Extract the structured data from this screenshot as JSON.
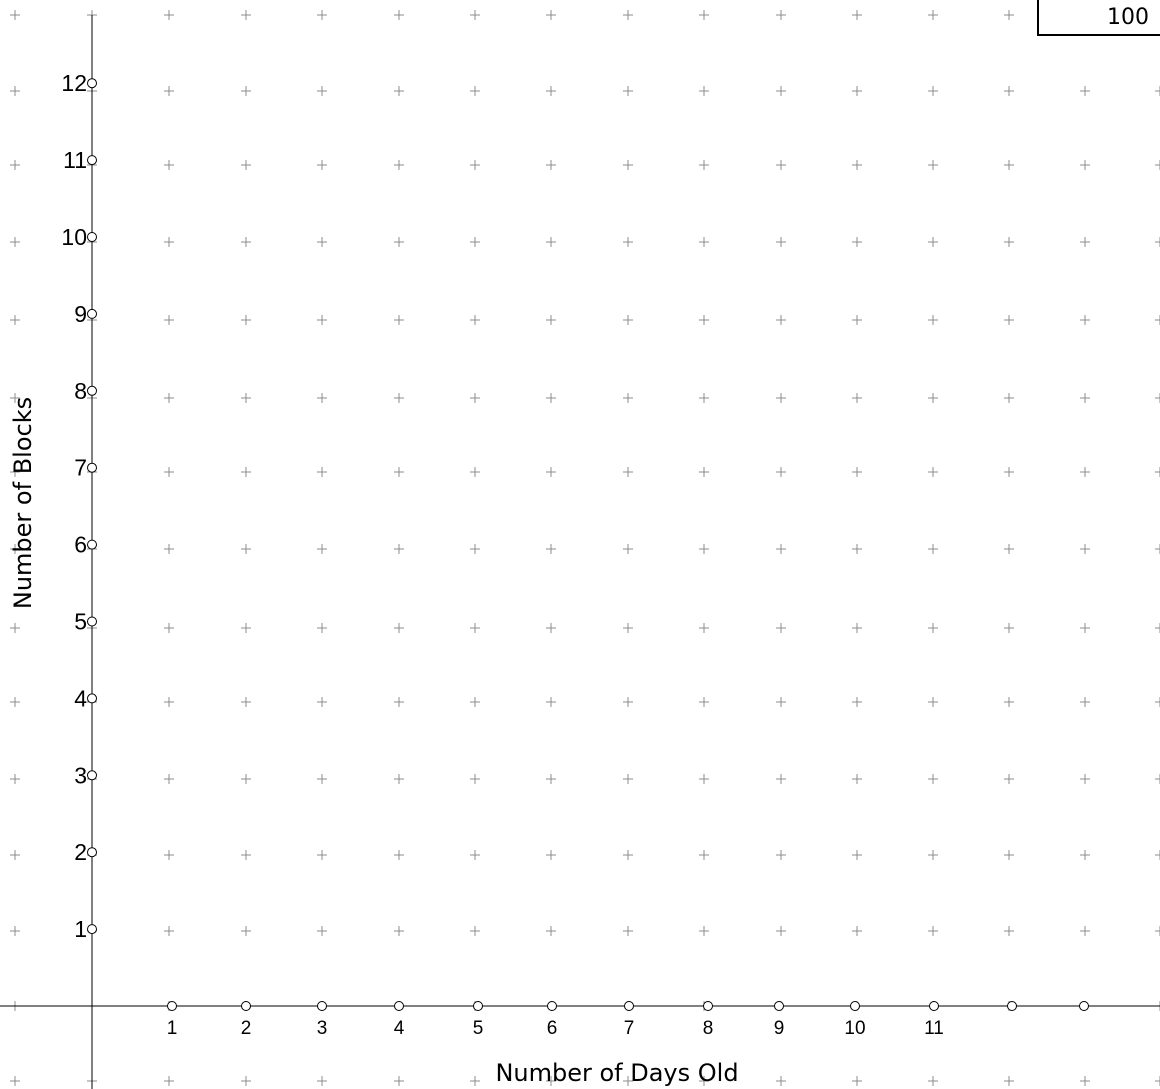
{
  "zoom": {
    "value": "100"
  },
  "chart_data": {
    "type": "scatter",
    "xlabel": "Number of Days Old",
    "ylabel": "Number of Blocks",
    "x_ticks": [
      "1",
      "2",
      "3",
      "4",
      "5",
      "6",
      "7",
      "8",
      "9",
      "10",
      "11"
    ],
    "y_ticks": [
      "1",
      "2",
      "3",
      "4",
      "5",
      "6",
      "7",
      "8",
      "9",
      "10",
      "11",
      "12"
    ],
    "xlim": [
      -1,
      14
    ],
    "ylim": [
      -1,
      13
    ],
    "grid": true,
    "series": [],
    "colors": {
      "grid": "#8c8c8c",
      "axis": "#000000",
      "point_fill": "#ffffff"
    }
  }
}
